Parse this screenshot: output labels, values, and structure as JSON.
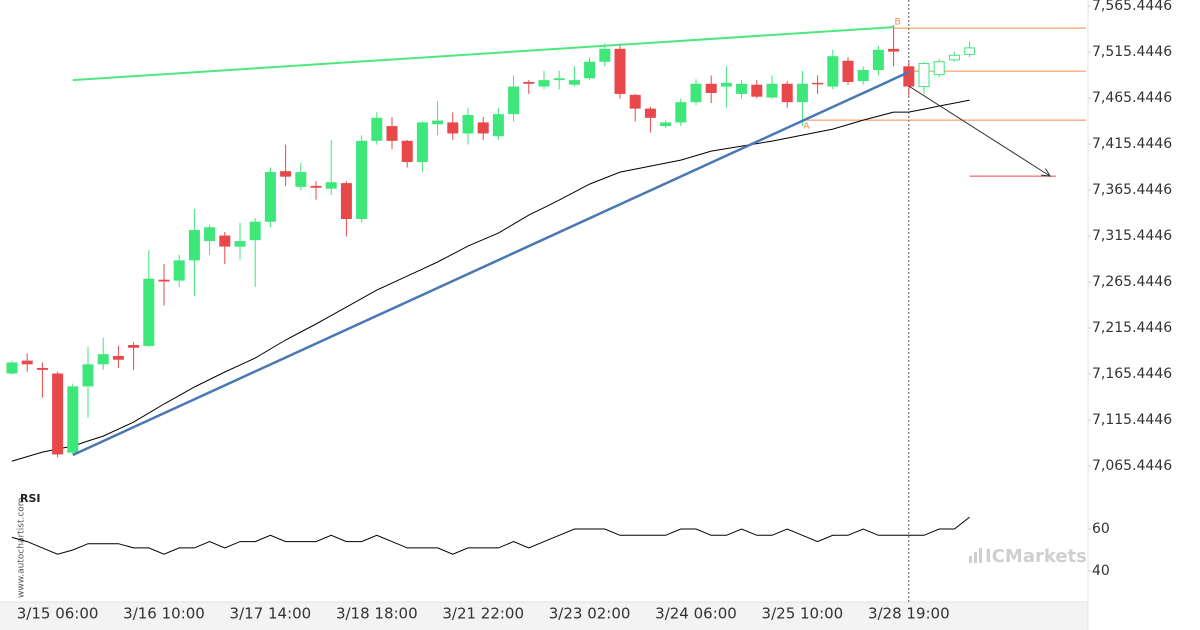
{
  "chart_data": {
    "type": "candlestick",
    "categories": [
      null,
      null,
      null,
      "3/15 06:00",
      null,
      null,
      null,
      null,
      null,
      null,
      "3/16 10:00",
      null,
      null,
      null,
      null,
      null,
      null,
      "3/17 14:00",
      null,
      null,
      null,
      null,
      null,
      null,
      "3/18 18:00",
      null,
      null,
      null,
      null,
      null,
      null,
      "3/21 22:00",
      null,
      null,
      null,
      null,
      null,
      null,
      "3/23 02:00",
      null,
      null,
      null,
      null,
      null,
      null,
      "3/24 06:00",
      null,
      null,
      null,
      null,
      null,
      null,
      "3/25 10:00",
      null,
      null,
      null,
      null,
      null,
      null,
      "3/28 19:00",
      null,
      null,
      null,
      null
    ],
    "ylim": [
      7039.35,
      7572.1
    ],
    "yticks": [
      {
        "value": 7065.4446,
        "label": "7,065.4446"
      },
      {
        "value": 7115.4446,
        "label": "7,115.4446"
      },
      {
        "value": 7165.4446,
        "label": "7,165.4446"
      },
      {
        "value": 7215.4446,
        "label": "7,215.4446"
      },
      {
        "value": 7265.4446,
        "label": "7,265.4446"
      },
      {
        "value": 7315.4446,
        "label": "7,315.4446"
      },
      {
        "value": 7365.4446,
        "label": "7,365.4446"
      },
      {
        "value": 7415.4446,
        "label": "7,415.4446"
      },
      {
        "value": 7465.4446,
        "label": "7,465.4446"
      },
      {
        "value": 7515.4446,
        "label": "7,515.4446"
      },
      {
        "value": 7565.4446,
        "label": "7,565.4446"
      }
    ],
    "candles": {
      "up_color": "#3ee77a",
      "down_color": "#e8484a",
      "open": [
        7166,
        7180,
        7172,
        7166,
        7080,
        7152,
        7176,
        7185,
        7197,
        7196,
        7268,
        7267,
        7289,
        7310,
        7316,
        7304,
        7311,
        7331,
        7386,
        7369,
        7370,
        7367,
        7373,
        7334,
        7419,
        7435,
        7419,
        7396,
        7437,
        7439,
        7427,
        7439,
        7424,
        7448,
        7483,
        7478,
        7485,
        7480,
        7487,
        7505,
        7519,
        7469,
        7454,
        7435,
        7439,
        7461,
        7481,
        7478,
        7470,
        7480,
        7466,
        7481,
        7461,
        7482,
        7478,
        7506,
        7484,
        7496,
        7519,
        7500,
        null,
        null,
        null,
        null
      ],
      "high": [
        7180,
        7188,
        7178,
        7168,
        7155,
        7195,
        7205,
        7196,
        7200,
        7300,
        7285,
        7295,
        7345,
        7328,
        7320,
        7330,
        7335,
        7390,
        7415,
        7395,
        7375,
        7420,
        7375,
        7425,
        7450,
        7445,
        7420,
        7440,
        7462,
        7450,
        7455,
        7445,
        7455,
        7490,
        7485,
        7495,
        7495,
        7500,
        7510,
        7525,
        7525,
        7470,
        7456,
        7441,
        7465,
        7486,
        7490,
        7500,
        7485,
        7485,
        7490,
        7484,
        7495,
        7490,
        7518,
        7510,
        7500,
        7522,
        7545,
        7505,
        null,
        null,
        null,
        null
      ],
      "low": [
        7165,
        7168,
        7140,
        7075,
        7078,
        7118,
        7170,
        7172,
        7170,
        7195,
        7240,
        7260,
        7250,
        7295,
        7285,
        7290,
        7260,
        7325,
        7370,
        7365,
        7355,
        7360,
        7315,
        7330,
        7415,
        7410,
        7390,
        7385,
        7425,
        7420,
        7415,
        7420,
        7420,
        7440,
        7470,
        7475,
        7475,
        7478,
        7485,
        7500,
        7465,
        7440,
        7428,
        7433,
        7435,
        7458,
        7460,
        7455,
        7465,
        7465,
        7465,
        7455,
        7435,
        7470,
        7475,
        7480,
        7480,
        7490,
        7500,
        7468,
        null,
        null,
        null,
        null
      ],
      "close": [
        7178,
        7176,
        7170,
        7078,
        7152,
        7176,
        7187,
        7181,
        7194,
        7269,
        7266,
        7289,
        7322,
        7325,
        7304,
        7310,
        7331,
        7385,
        7380,
        7385,
        7368,
        7374,
        7334,
        7419,
        7444,
        7419,
        7396,
        7439,
        7441,
        7427,
        7447,
        7427,
        7448,
        7478,
        7481,
        7485,
        7487,
        7485,
        7505,
        7519,
        7470,
        7454,
        7444,
        7439,
        7461,
        7481,
        7471,
        7482,
        7481,
        7467,
        7481,
        7461,
        7481,
        7481,
        7511,
        7483,
        7496,
        7518,
        7516,
        7478,
        null,
        null,
        null,
        null
      ]
    },
    "forecast": {
      "color": "#3ee77a",
      "x": [
        60,
        61,
        62,
        63
      ],
      "open": [
        7478,
        7491,
        7507,
        7513
      ],
      "high": [
        7505,
        7508,
        7516,
        7527
      ],
      "low": [
        7470,
        7488,
        7505,
        7510
      ],
      "close": [
        7503,
        7505,
        7512,
        7520
      ]
    },
    "moving_average": {
      "color": "#000000",
      "values": [
        7070.8,
        7075.7,
        7080.6,
        7083.9,
        7087.1,
        7092.6,
        7098,
        7105.6,
        7113.2,
        7123,
        7132.8,
        7142,
        7151.3,
        7159.5,
        7167.6,
        7175.2,
        7182.8,
        7192.6,
        7202.4,
        7211.1,
        7219.8,
        7229,
        7238.2,
        7247.5,
        7256.7,
        7264.3,
        7271.9,
        7279.5,
        7287.2,
        7295.8,
        7304.5,
        7311.6,
        7318.7,
        7328.5,
        7338.2,
        7346.3,
        7354.5,
        7363.2,
        7371.9,
        7378.5,
        7385,
        7388.3,
        7391.5,
        7394.8,
        7398,
        7402.9,
        7407.8,
        7410.5,
        7413.2,
        7416,
        7418.7,
        7422,
        7425.2,
        7428.5,
        7431.7,
        7436.6,
        7441.5,
        7445.9,
        7450.2,
        7450.2,
        7453.5,
        7456.8,
        7460,
        7463.3
      ]
    },
    "resistance_line": {
      "color": "#4de87d",
      "x": [
        4,
        58
      ],
      "y": [
        7485,
        7542.6
      ]
    },
    "support_line": {
      "color": "#4a78b4",
      "x": [
        4,
        59
      ],
      "y": [
        7077.4,
        7493.7
      ]
    },
    "levels": {
      "color": "#f08a4b",
      "values": [
        7541.5,
        7494.8,
        7441.5
      ],
      "from": [
        58,
        59,
        52
      ]
    },
    "target": {
      "color": "#e8484a",
      "value": 7380.6,
      "from": 63,
      "to": 68.7
    },
    "arrow": {
      "color": "#333333",
      "x": [
        59,
        68.3
      ],
      "y": [
        7478.5,
        7380.6
      ]
    },
    "annotations": [
      {
        "text": "A",
        "x": 52,
        "y": 7435
      },
      {
        "text": "B",
        "x": 58,
        "y": 7548
      }
    ],
    "rsi": {
      "label": "RSI",
      "color": "#000000",
      "ylim": [
        25.2,
        78.6
      ],
      "yticks": [
        40,
        60
      ],
      "values": [
        56,
        54,
        51,
        48,
        50,
        53,
        53,
        53,
        51,
        51,
        48,
        51,
        51,
        54,
        51,
        54,
        54,
        57,
        54,
        54,
        54,
        57,
        54,
        54,
        57,
        54,
        51,
        51,
        51,
        48,
        51,
        51,
        51,
        54,
        51,
        54,
        57,
        60,
        60,
        60,
        57,
        57,
        57,
        57,
        60,
        60,
        57,
        57,
        60,
        57,
        57,
        60,
        57,
        54,
        57,
        57,
        60,
        57,
        57,
        57,
        57,
        60,
        60,
        65.7
      ]
    },
    "watermarks": [
      "www.autochartist.com",
      "ICMarkets"
    ]
  }
}
